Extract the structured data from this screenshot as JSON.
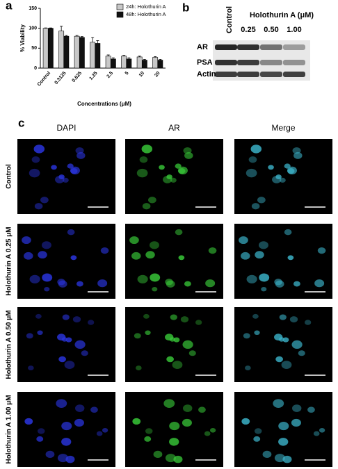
{
  "chart_data": {
    "type": "bar",
    "y_label": "% Viability",
    "x_label": "Concentrations (μM)",
    "categories": [
      "Control",
      "0.3125",
      "0.625",
      "1.25",
      "2.5",
      "5",
      "10",
      "20"
    ],
    "series": [
      {
        "name": "24h: Holothurin A",
        "color": "#c8c8c8",
        "values": [
          100,
          93,
          80,
          65,
          30,
          30,
          28,
          27
        ],
        "errors": [
          1,
          12,
          2,
          12,
          3,
          2,
          2,
          2
        ]
      },
      {
        "name": "48h: Holothurin A",
        "color": "#111111",
        "values": [
          100,
          80,
          77,
          62,
          23,
          23,
          20,
          20
        ],
        "errors": [
          1,
          2,
          2,
          7,
          3,
          3,
          2,
          2
        ]
      }
    ],
    "ylim": [
      0,
      150
    ],
    "yticks": [
      0,
      50,
      100,
      150
    ],
    "legend": "upper right"
  },
  "panel_labels": [
    "a",
    "b",
    "c"
  ],
  "blot": {
    "control": "Control",
    "title": "Holothurin A (μM)",
    "doses": [
      "0.25",
      "0.50",
      "1.00"
    ],
    "proteins": [
      "AR",
      "PSA",
      "Actin"
    ]
  },
  "microscopy": {
    "columns": [
      "DAPI",
      "AR",
      "Merge"
    ],
    "rows": [
      "Control",
      "Holothurin A 0.25 μM",
      "Holothurin A 0.50 μM",
      "Holothurin A 1.00 μM"
    ]
  }
}
